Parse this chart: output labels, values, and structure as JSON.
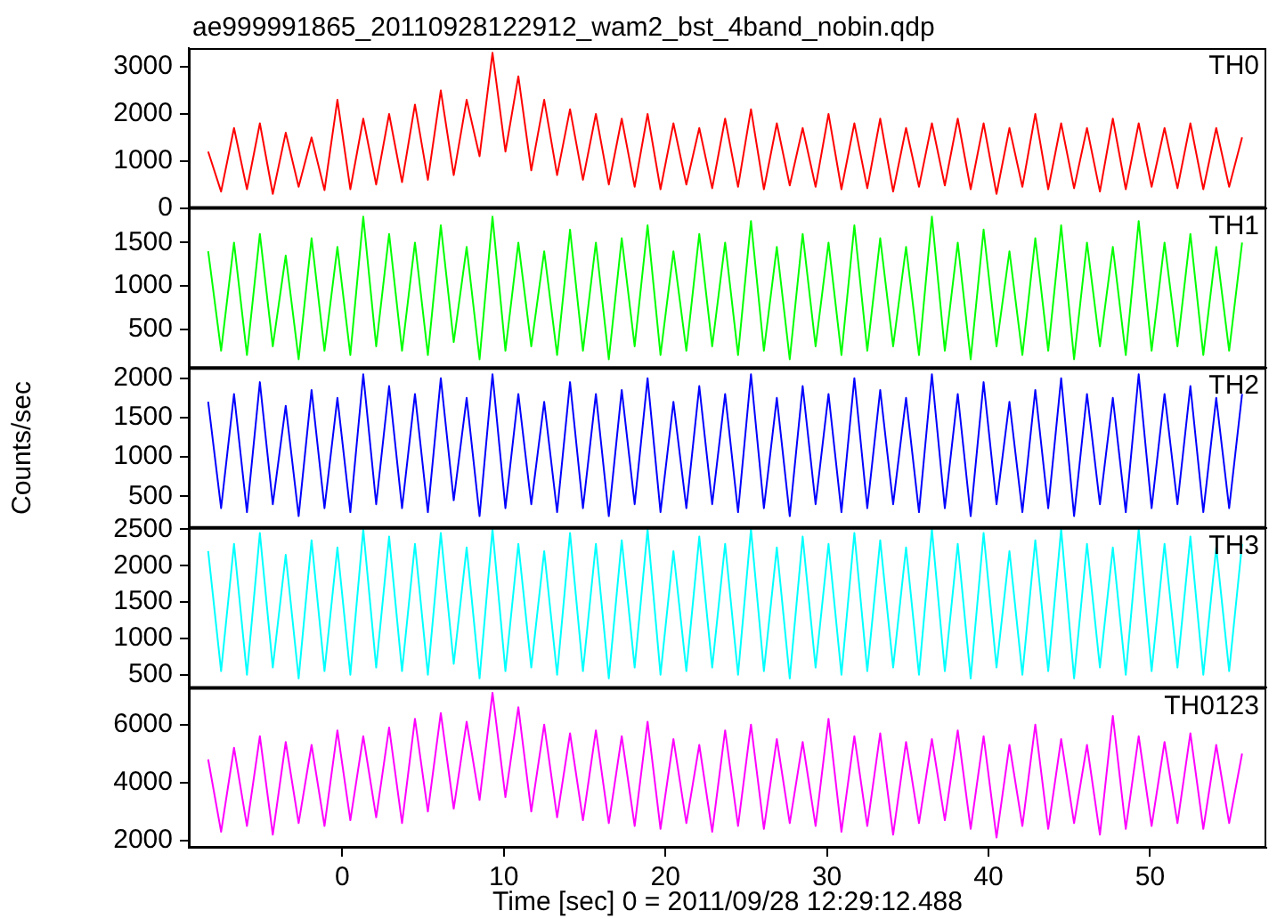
{
  "chart_data": [
    {
      "type": "line",
      "title": "ae999991865_20110928122912_wam2_bst_4band_nobin.qdp",
      "marker": "none",
      "tick_labels": "y",
      "xlim": [
        -9.5,
        57.2
      ],
      "xticks": [
        0,
        10,
        20,
        30,
        40,
        50
      ],
      "ylim": [
        0,
        3400
      ],
      "yticks": [
        0,
        1000,
        2000,
        3000
      ],
      "x": [
        -8.3,
        -7.5,
        -6.7,
        -5.9,
        -5.1,
        -4.3,
        -3.5,
        -2.7,
        -1.9,
        -1.1,
        -0.3,
        0.5,
        1.3,
        2.1,
        2.9,
        3.7,
        4.5,
        5.3,
        6.1,
        6.9,
        7.7,
        8.5,
        9.3,
        10.1,
        10.9,
        11.7,
        12.5,
        13.3,
        14.1,
        14.9,
        15.7,
        16.5,
        17.3,
        18.1,
        18.9,
        19.7,
        20.5,
        21.3,
        22.1,
        22.9,
        23.7,
        24.5,
        25.3,
        26.1,
        26.9,
        27.7,
        28.5,
        29.3,
        30.1,
        30.9,
        31.7,
        32.5,
        33.3,
        34.1,
        34.9,
        35.7,
        36.5,
        37.3,
        38.1,
        38.9,
        39.7,
        40.5,
        41.3,
        42.1,
        42.9,
        43.7,
        44.5,
        45.3,
        46.1,
        46.9,
        47.7,
        48.5,
        49.3,
        50.1,
        50.9,
        51.7,
        52.5,
        53.3,
        54.1,
        54.9,
        55.7
      ],
      "series": [
        {
          "name": "TH0",
          "color": "#ff0000",
          "values": [
            1200,
            350,
            1700,
            400,
            1800,
            300,
            1600,
            450,
            1500,
            380,
            2300,
            400,
            1900,
            500,
            2000,
            550,
            2200,
            600,
            2500,
            700,
            2300,
            1100,
            3300,
            1200,
            2800,
            800,
            2300,
            700,
            2100,
            600,
            2000,
            500,
            1900,
            450,
            2000,
            400,
            1800,
            500,
            1700,
            420,
            1900,
            450,
            2100,
            400,
            1800,
            480,
            1700,
            450,
            2000,
            400,
            1800,
            420,
            1900,
            350,
            1700,
            450,
            1800,
            480,
            1900,
            400,
            1800,
            300,
            1700,
            450,
            2000,
            400,
            1800,
            420,
            1700,
            350,
            1900,
            400,
            1800,
            450,
            1700,
            420,
            1800,
            400,
            1700,
            450,
            1500
          ]
        }
      ]
    },
    {
      "type": "line",
      "marker": "none",
      "tick_labels": "y",
      "xlim": [
        -9.5,
        57.2
      ],
      "xticks": [
        0,
        10,
        20,
        30,
        40,
        50
      ],
      "ylim": [
        50,
        1900
      ],
      "yticks": [
        500,
        1000,
        1500
      ],
      "x": [
        -8.3,
        -7.5,
        -6.7,
        -5.9,
        -5.1,
        -4.3,
        -3.5,
        -2.7,
        -1.9,
        -1.1,
        -0.3,
        0.5,
        1.3,
        2.1,
        2.9,
        3.7,
        4.5,
        5.3,
        6.1,
        6.9,
        7.7,
        8.5,
        9.3,
        10.1,
        10.9,
        11.7,
        12.5,
        13.3,
        14.1,
        14.9,
        15.7,
        16.5,
        17.3,
        18.1,
        18.9,
        19.7,
        20.5,
        21.3,
        22.1,
        22.9,
        23.7,
        24.5,
        25.3,
        26.1,
        26.9,
        27.7,
        28.5,
        29.3,
        30.1,
        30.9,
        31.7,
        32.5,
        33.3,
        34.1,
        34.9,
        35.7,
        36.5,
        37.3,
        38.1,
        38.9,
        39.7,
        40.5,
        41.3,
        42.1,
        42.9,
        43.7,
        44.5,
        45.3,
        46.1,
        46.9,
        47.7,
        48.5,
        49.3,
        50.1,
        50.9,
        51.7,
        52.5,
        53.3,
        54.1,
        54.9,
        55.7
      ],
      "series": [
        {
          "name": "TH1",
          "color": "#00ff00",
          "values": [
            1400,
            250,
            1500,
            200,
            1600,
            300,
            1350,
            150,
            1550,
            250,
            1450,
            200,
            1800,
            300,
            1600,
            250,
            1500,
            200,
            1700,
            350,
            1450,
            150,
            1800,
            250,
            1500,
            300,
            1400,
            200,
            1650,
            250,
            1500,
            150,
            1550,
            300,
            1700,
            200,
            1400,
            250,
            1600,
            300,
            1500,
            200,
            1750,
            250,
            1450,
            150,
            1600,
            300,
            1500,
            200,
            1700,
            250,
            1550,
            300,
            1450,
            200,
            1800,
            250,
            1500,
            150,
            1650,
            300,
            1400,
            200,
            1550,
            250,
            1700,
            150,
            1500,
            300,
            1450,
            200,
            1750,
            250,
            1500,
            300,
            1600,
            200,
            1450,
            250,
            1500
          ]
        }
      ]
    },
    {
      "type": "line",
      "marker": "none",
      "tick_labels": "y",
      "ylabel": "Counts/sec",
      "xlim": [
        -9.5,
        57.2
      ],
      "xticks": [
        0,
        10,
        20,
        30,
        40,
        50
      ],
      "ylim": [
        100,
        2130
      ],
      "yticks": [
        500,
        1000,
        1500,
        2000
      ],
      "x": [
        -8.3,
        -7.5,
        -6.7,
        -5.9,
        -5.1,
        -4.3,
        -3.5,
        -2.7,
        -1.9,
        -1.1,
        -0.3,
        0.5,
        1.3,
        2.1,
        2.9,
        3.7,
        4.5,
        5.3,
        6.1,
        6.9,
        7.7,
        8.5,
        9.3,
        10.1,
        10.9,
        11.7,
        12.5,
        13.3,
        14.1,
        14.9,
        15.7,
        16.5,
        17.3,
        18.1,
        18.9,
        19.7,
        20.5,
        21.3,
        22.1,
        22.9,
        23.7,
        24.5,
        25.3,
        26.1,
        26.9,
        27.7,
        28.5,
        29.3,
        30.1,
        30.9,
        31.7,
        32.5,
        33.3,
        34.1,
        34.9,
        35.7,
        36.5,
        37.3,
        38.1,
        38.9,
        39.7,
        40.5,
        41.3,
        42.1,
        42.9,
        43.7,
        44.5,
        45.3,
        46.1,
        46.9,
        47.7,
        48.5,
        49.3,
        50.1,
        50.9,
        51.7,
        52.5,
        53.3,
        54.1,
        54.9,
        55.7
      ],
      "series": [
        {
          "name": "TH2",
          "color": "#0000ff",
          "values": [
            1700,
            350,
            1800,
            300,
            1950,
            400,
            1650,
            250,
            1850,
            350,
            1750,
            300,
            2050,
            400,
            1900,
            350,
            1800,
            300,
            2000,
            450,
            1750,
            250,
            2050,
            350,
            1800,
            400,
            1700,
            300,
            1950,
            350,
            1800,
            250,
            1850,
            400,
            2000,
            300,
            1700,
            350,
            1900,
            400,
            1800,
            300,
            2050,
            350,
            1750,
            250,
            1900,
            400,
            1800,
            300,
            2000,
            350,
            1850,
            400,
            1750,
            300,
            2050,
            350,
            1800,
            250,
            1950,
            400,
            1700,
            300,
            1850,
            350,
            2000,
            250,
            1800,
            400,
            1750,
            300,
            2050,
            350,
            1800,
            400,
            1900,
            300,
            1750,
            350,
            1800
          ]
        }
      ]
    },
    {
      "type": "line",
      "marker": "none",
      "tick_labels": "y",
      "xlim": [
        -9.5,
        57.2
      ],
      "xticks": [
        0,
        10,
        20,
        30,
        40,
        50
      ],
      "ylim": [
        320,
        2520
      ],
      "yticks": [
        500,
        1000,
        1500,
        2000,
        2500
      ],
      "x": [
        -8.3,
        -7.5,
        -6.7,
        -5.9,
        -5.1,
        -4.3,
        -3.5,
        -2.7,
        -1.9,
        -1.1,
        -0.3,
        0.5,
        1.3,
        2.1,
        2.9,
        3.7,
        4.5,
        5.3,
        6.1,
        6.9,
        7.7,
        8.5,
        9.3,
        10.1,
        10.9,
        11.7,
        12.5,
        13.3,
        14.1,
        14.9,
        15.7,
        16.5,
        17.3,
        18.1,
        18.9,
        19.7,
        20.5,
        21.3,
        22.1,
        22.9,
        23.7,
        24.5,
        25.3,
        26.1,
        26.9,
        27.7,
        28.5,
        29.3,
        30.1,
        30.9,
        31.7,
        32.5,
        33.3,
        34.1,
        34.9,
        35.7,
        36.5,
        37.3,
        38.1,
        38.9,
        39.7,
        40.5,
        41.3,
        42.1,
        42.9,
        43.7,
        44.5,
        45.3,
        46.1,
        46.9,
        47.7,
        48.5,
        49.3,
        50.1,
        50.9,
        51.7,
        52.5,
        53.3,
        54.1,
        54.9,
        55.7
      ],
      "series": [
        {
          "name": "TH3",
          "color": "#00ffff",
          "values": [
            2200,
            550,
            2300,
            500,
            2450,
            600,
            2150,
            450,
            2350,
            550,
            2250,
            500,
            2500,
            600,
            2400,
            550,
            2300,
            500,
            2450,
            650,
            2250,
            450,
            2500,
            550,
            2300,
            600,
            2200,
            500,
            2450,
            550,
            2300,
            450,
            2350,
            600,
            2500,
            500,
            2200,
            550,
            2400,
            600,
            2300,
            500,
            2500,
            550,
            2250,
            450,
            2400,
            600,
            2300,
            500,
            2450,
            550,
            2350,
            600,
            2250,
            500,
            2500,
            550,
            2300,
            450,
            2450,
            600,
            2200,
            500,
            2350,
            550,
            2500,
            450,
            2300,
            600,
            2250,
            500,
            2500,
            550,
            2300,
            600,
            2400,
            500,
            2250,
            550,
            2300
          ]
        }
      ]
    },
    {
      "type": "line",
      "marker": "none",
      "xlabel": "Time [sec] 0 = 2011/09/28 12:29:12.488",
      "xlim": [
        -9.5,
        57.2
      ],
      "xticks": [
        0,
        10,
        20,
        30,
        40,
        50
      ],
      "ylim": [
        1750,
        7270
      ],
      "yticks": [
        2000,
        4000,
        6000
      ],
      "x": [
        -8.3,
        -7.5,
        -6.7,
        -5.9,
        -5.1,
        -4.3,
        -3.5,
        -2.7,
        -1.9,
        -1.1,
        -0.3,
        0.5,
        1.3,
        2.1,
        2.9,
        3.7,
        4.5,
        5.3,
        6.1,
        6.9,
        7.7,
        8.5,
        9.3,
        10.1,
        10.9,
        11.7,
        12.5,
        13.3,
        14.1,
        14.9,
        15.7,
        16.5,
        17.3,
        18.1,
        18.9,
        19.7,
        20.5,
        21.3,
        22.1,
        22.9,
        23.7,
        24.5,
        25.3,
        26.1,
        26.9,
        27.7,
        28.5,
        29.3,
        30.1,
        30.9,
        31.7,
        32.5,
        33.3,
        34.1,
        34.9,
        35.7,
        36.5,
        37.3,
        38.1,
        38.9,
        39.7,
        40.5,
        41.3,
        42.1,
        42.9,
        43.7,
        44.5,
        45.3,
        46.1,
        46.9,
        47.7,
        48.5,
        49.3,
        50.1,
        50.9,
        51.7,
        52.5,
        53.3,
        54.1,
        54.9,
        55.7
      ],
      "series": [
        {
          "name": "TH0123",
          "color": "#ff00ff",
          "values": [
            4800,
            2300,
            5200,
            2500,
            5600,
            2200,
            5400,
            2600,
            5300,
            2500,
            5800,
            2700,
            5600,
            2800,
            5900,
            2600,
            6200,
            3000,
            6400,
            3100,
            6100,
            3400,
            7100,
            3500,
            6600,
            3000,
            6000,
            2800,
            5700,
            2700,
            5800,
            2600,
            5600,
            2500,
            6100,
            2400,
            5500,
            2600,
            5300,
            2300,
            5800,
            2500,
            6000,
            2400,
            5500,
            2600,
            5400,
            2500,
            6200,
            2300,
            5600,
            2500,
            5700,
            2200,
            5400,
            2600,
            5500,
            2700,
            5800,
            2400,
            5600,
            2100,
            5300,
            2500,
            6000,
            2400,
            5500,
            2600,
            5300,
            2200,
            6300,
            2400,
            5600,
            2500,
            5400,
            2600,
            5700,
            2400,
            5300,
            2600,
            5000
          ]
        }
      ]
    }
  ]
}
